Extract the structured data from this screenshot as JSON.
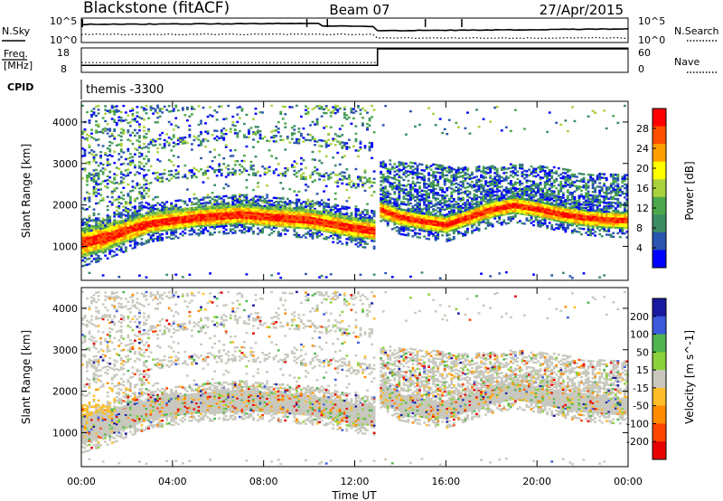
{
  "header": {
    "station": "Blackstone (fitACF)",
    "beam": "Beam 07",
    "date": "27/Apr/2015"
  },
  "noise_panel": {
    "left_label": "N.Sky",
    "right_label": "N.Search",
    "tick_top": "10^5",
    "tick_bottom": "10^0"
  },
  "freq_panel": {
    "left_label_1": "Freq.",
    "left_label_2": "[MHz]",
    "right_label": "Nave",
    "left_ticks": [
      "18",
      "8"
    ],
    "right_ticks": [
      "60",
      "0"
    ],
    "freq_mhz": {
      "before_1300": 10.4,
      "after_1300": 18
    },
    "nave": {
      "before_1300": 22,
      "after_1300": 60
    }
  },
  "cpid_panel": {
    "label": "CPID",
    "program": "themis -3300"
  },
  "colors": {
    "power_scale": [
      "#0000ff",
      "#2a55b0",
      "#3c8c64",
      "#4ca84c",
      "#a8d23c",
      "#ffff00",
      "#ffa000",
      "#ff5000",
      "#ff0000"
    ],
    "velocity_scale": [
      "#1a1aa0",
      "#3c5adc",
      "#50b450",
      "#8cd23c",
      "#c8c8be",
      "#ffbe28",
      "#ff8c00",
      "#ff4600",
      "#e60000"
    ]
  },
  "chart_data": [
    {
      "type": "heatmap",
      "title": "",
      "xlabel": "",
      "ylabel": "Slant Range [km]",
      "x_ticks": [
        "00:00",
        "04:00",
        "08:00",
        "12:00",
        "16:00",
        "20:00",
        "00:00"
      ],
      "y_ticks": [
        "1000",
        "2000",
        "3000",
        "4000"
      ],
      "ylim": [
        180,
        4500
      ],
      "colorbar": {
        "label": "Power [dB]",
        "ticks": [
          "4",
          "8",
          "12",
          "16",
          "20",
          "24",
          "28"
        ],
        "range": [
          0,
          32
        ]
      },
      "features": {
        "main_band_center_km": [
          [
            0,
            1080
          ],
          [
            1,
            1200
          ],
          [
            2,
            1380
          ],
          [
            3,
            1560
          ],
          [
            5,
            1700
          ],
          [
            7,
            1780
          ],
          [
            8,
            1730
          ],
          [
            10,
            1650
          ],
          [
            12,
            1450
          ],
          [
            13,
            1380
          ],
          [
            13.05,
            1900
          ],
          [
            14,
            1700
          ],
          [
            15,
            1600
          ],
          [
            16,
            1520
          ],
          [
            17,
            1700
          ],
          [
            18,
            1880
          ],
          [
            19,
            1990
          ],
          [
            20,
            1900
          ],
          [
            21,
            1780
          ],
          [
            22,
            1690
          ],
          [
            23,
            1640
          ],
          [
            24,
            1620
          ]
        ],
        "outer_band_center_km": [
          [
            13.1,
            2750
          ],
          [
            15,
            2650
          ],
          [
            17,
            2560
          ],
          [
            19,
            2640
          ],
          [
            21,
            2560
          ],
          [
            22,
            2420
          ],
          [
            24,
            2400
          ]
        ]
      }
    },
    {
      "type": "heatmap",
      "title": "",
      "xlabel": "Time UT",
      "ylabel": "Slant Range [km]",
      "x_ticks": [
        "00:00",
        "04:00",
        "08:00",
        "12:00",
        "16:00",
        "20:00",
        "00:00"
      ],
      "y_ticks": [
        "1000",
        "2000",
        "3000",
        "4000"
      ],
      "ylim": [
        180,
        4500
      ],
      "colorbar": {
        "label": "Velocity [m s^-1]",
        "ticks": [
          "200",
          "100",
          "50",
          "15",
          "-15",
          "-50",
          "-100",
          "-200"
        ]
      }
    }
  ]
}
